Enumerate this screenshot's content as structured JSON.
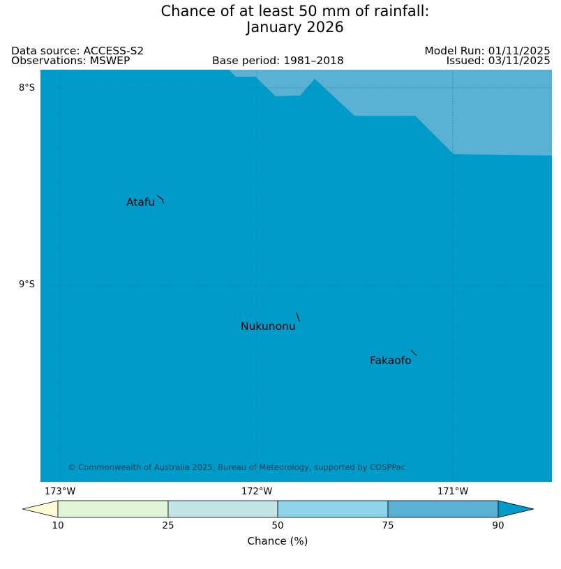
{
  "title": {
    "line1": "Chance of at least 50 mm of rainfall:",
    "line2": "January 2026"
  },
  "meta": {
    "data_source": "Data source: ACCESS-S2",
    "observations": "Observations: MSWEP",
    "base_period": "Base period: 1981–2018",
    "model_run": "Model Run: 01/11/2025",
    "issued": "Issued: 03/11/2025"
  },
  "map": {
    "colors": {
      "c75_90": "#5ab1d4",
      "c90plus": "#009bc8",
      "grid": "#1f6f8c"
    },
    "lat_labels": [
      "8°S",
      "9°S"
    ],
    "lon_labels": [
      "173°W",
      "172°W",
      "171°W"
    ],
    "places": [
      {
        "name": "Atafu"
      },
      {
        "name": "Nukunonu"
      },
      {
        "name": "Fakaofo"
      }
    ],
    "credit": "© Commonwealth of Australia 2025, Bureau of Meteorology, supported by COSPPac"
  },
  "colorbar": {
    "title": "Chance (%)",
    "ticks": [
      "10",
      "25",
      "50",
      "75",
      "90"
    ],
    "colors": {
      "below10": "#fffad6",
      "c10_25": "#e0f4d8",
      "c25_50": "#c3e4e4",
      "c50_75": "#8fd3ea",
      "c75_90": "#5ab1d4",
      "above90": "#009bc8"
    }
  }
}
